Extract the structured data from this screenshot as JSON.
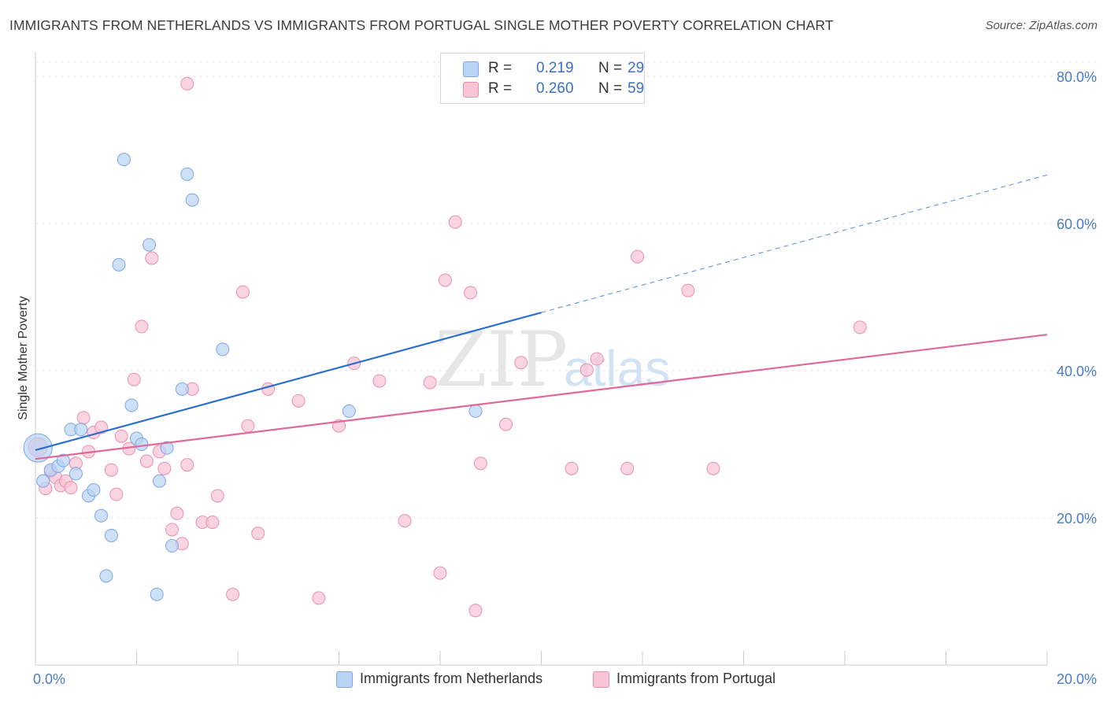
{
  "title": "IMMIGRANTS FROM NETHERLANDS VS IMMIGRANTS FROM PORTUGAL SINGLE MOTHER POVERTY CORRELATION CHART",
  "source": "Source: ZipAtlas.com",
  "watermark": {
    "zip": "ZIP",
    "atlas": "atlas"
  },
  "legend": {
    "r_label": "R =",
    "n_label": "N =",
    "netherlands": {
      "r": "0.219",
      "n": "29"
    },
    "portugal": {
      "r": "0.260",
      "n": "59"
    }
  },
  "bottom_legend": {
    "netherlands": "Immigrants from Netherlands",
    "portugal": "Immigrants from Portugal"
  },
  "colors": {
    "netherlands_fill": "#b9d3f5",
    "netherlands_stroke": "#7ea7e0",
    "netherlands_line": "#2a6fd0",
    "portugal_fill": "#f8c5d5",
    "portugal_stroke": "#e990ad",
    "portugal_line": "#e0699a",
    "value_text": "#3a70c8"
  },
  "chart_data": {
    "type": "scatter",
    "title": "IMMIGRANTS FROM NETHERLANDS VS IMMIGRANTS FROM PORTUGAL SINGLE MOTHER POVERTY CORRELATION CHART",
    "xlabel": "",
    "ylabel": "Single Mother Poverty",
    "xlim": [
      0,
      20
    ],
    "ylim": [
      0,
      82
    ],
    "x_tick_labels": [
      "0.0%",
      "20.0%"
    ],
    "y_ticks": [
      20,
      40,
      60,
      80
    ],
    "y_tick_labels": [
      "20.0%",
      "40.0%",
      "60.0%",
      "80.0%"
    ],
    "grid": true,
    "legend_position": "top-center",
    "series": [
      {
        "name": "Immigrants from Netherlands",
        "r": 0.219,
        "n": 29,
        "points": [
          [
            0.05,
            29.5
          ],
          [
            0.15,
            25.0
          ],
          [
            0.3,
            26.5
          ],
          [
            0.45,
            27.0
          ],
          [
            0.55,
            27.8
          ],
          [
            0.7,
            32.0
          ],
          [
            0.8,
            26.0
          ],
          [
            0.9,
            32.0
          ],
          [
            1.05,
            23.0
          ],
          [
            1.15,
            23.8
          ],
          [
            1.3,
            20.3
          ],
          [
            1.4,
            12.1
          ],
          [
            1.5,
            17.6
          ],
          [
            1.65,
            54.4
          ],
          [
            1.75,
            68.7
          ],
          [
            1.9,
            35.3
          ],
          [
            2.0,
            30.8
          ],
          [
            2.1,
            30.0
          ],
          [
            2.25,
            57.1
          ],
          [
            2.4,
            9.6
          ],
          [
            2.45,
            25.0
          ],
          [
            2.6,
            29.5
          ],
          [
            2.7,
            16.2
          ],
          [
            2.9,
            37.5
          ],
          [
            3.0,
            66.7
          ],
          [
            3.1,
            63.2
          ],
          [
            3.7,
            42.9
          ],
          [
            6.2,
            34.5
          ],
          [
            8.7,
            34.5
          ]
        ],
        "trend": {
          "x0": 0,
          "y0": 29.2,
          "x1": 10.0,
          "y1": 47.9,
          "dashed_to": [
            20,
            66.6
          ]
        }
      },
      {
        "name": "Immigrants from Portugal",
        "r": 0.26,
        "n": 59,
        "points": [
          [
            0.05,
            29.6
          ],
          [
            0.2,
            24.0
          ],
          [
            0.3,
            26.3
          ],
          [
            0.4,
            25.5
          ],
          [
            0.5,
            24.4
          ],
          [
            0.6,
            25.0
          ],
          [
            0.7,
            24.1
          ],
          [
            0.8,
            27.4
          ],
          [
            0.95,
            33.6
          ],
          [
            1.05,
            29.0
          ],
          [
            1.15,
            31.6
          ],
          [
            1.3,
            32.3
          ],
          [
            1.5,
            26.5
          ],
          [
            1.6,
            23.2
          ],
          [
            1.7,
            31.1
          ],
          [
            1.85,
            29.4
          ],
          [
            1.95,
            38.8
          ],
          [
            2.1,
            46.0
          ],
          [
            2.2,
            27.7
          ],
          [
            2.3,
            55.3
          ],
          [
            2.45,
            29.0
          ],
          [
            2.55,
            26.7
          ],
          [
            2.7,
            18.4
          ],
          [
            2.8,
            20.6
          ],
          [
            2.9,
            16.5
          ],
          [
            3.0,
            27.2
          ],
          [
            3.1,
            37.5
          ],
          [
            3.0,
            79.0
          ],
          [
            3.3,
            19.4
          ],
          [
            3.5,
            19.4
          ],
          [
            3.6,
            23.0
          ],
          [
            3.9,
            9.6
          ],
          [
            4.1,
            50.7
          ],
          [
            4.2,
            32.5
          ],
          [
            4.4,
            17.9
          ],
          [
            4.6,
            37.5
          ],
          [
            5.2,
            35.9
          ],
          [
            5.6,
            9.1
          ],
          [
            6.0,
            32.5
          ],
          [
            6.3,
            41.0
          ],
          [
            6.8,
            38.6
          ],
          [
            7.3,
            19.6
          ],
          [
            7.8,
            38.4
          ],
          [
            8.0,
            12.5
          ],
          [
            8.1,
            52.3
          ],
          [
            8.3,
            60.2
          ],
          [
            8.6,
            50.6
          ],
          [
            8.7,
            7.4
          ],
          [
            8.8,
            27.4
          ],
          [
            9.3,
            32.7
          ],
          [
            9.6,
            41.1
          ],
          [
            10.6,
            26.7
          ],
          [
            10.9,
            40.1
          ],
          [
            11.1,
            41.6
          ],
          [
            11.7,
            26.7
          ],
          [
            11.9,
            55.5
          ],
          [
            12.9,
            50.9
          ],
          [
            13.4,
            26.7
          ],
          [
            16.3,
            45.9
          ]
        ],
        "trend": {
          "x0": 0,
          "y0": 28.0,
          "x1": 20,
          "y1": 44.9
        }
      }
    ]
  }
}
